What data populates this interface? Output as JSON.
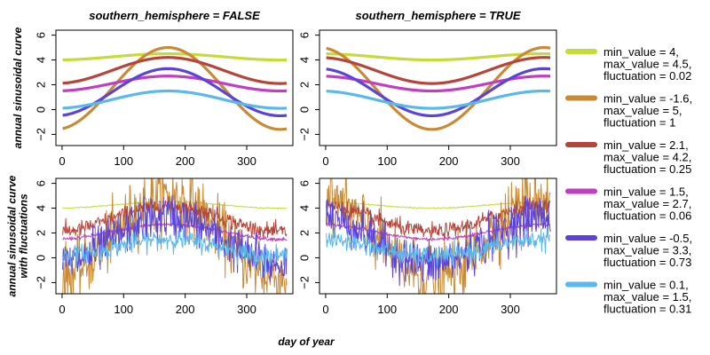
{
  "chart_data": {
    "type": "line",
    "x_label": "day of year",
    "columns": [
      {
        "title": "southern_hemisphere = FALSE",
        "southern_hemisphere": false
      },
      {
        "title": "southern_hemisphere = TRUE",
        "southern_hemisphere": true
      }
    ],
    "rows": [
      {
        "y_label_lines": [
          "annual sinusoidal curve"
        ],
        "with_fluctuations": false
      },
      {
        "y_label_lines": [
          "annual sinusoidal curve",
          "with fluctuations"
        ],
        "with_fluctuations": true
      }
    ],
    "xlim": [
      -10,
      375
    ],
    "ylim": [
      -2.9,
      6.4
    ],
    "x_ticks": [
      0,
      100,
      200,
      300
    ],
    "y_ticks": [
      -2,
      0,
      2,
      4,
      6
    ],
    "peak_day_north": 172,
    "peak_day_south": 355,
    "series": [
      {
        "name": "min_value = 4,\nmax_value = 4.5,\nfluctuation = 0.02",
        "min_value": 4,
        "max_value": 4.5,
        "fluctuation": 0.02,
        "color": "#c7da3b"
      },
      {
        "name": "min_value = -1.6,\nmax_value = 5,\nfluctuation = 1",
        "min_value": -1.6,
        "max_value": 5,
        "fluctuation": 1,
        "color": "#c88a34"
      },
      {
        "name": "min_value = 2.1,\nmax_value = 4.2,\nfluctuation = 0.25",
        "min_value": 2.1,
        "max_value": 4.2,
        "fluctuation": 0.25,
        "color": "#b5453a"
      },
      {
        "name": "min_value = 1.5,\nmax_value = 2.7,\nfluctuation = 0.06",
        "min_value": 1.5,
        "max_value": 2.7,
        "fluctuation": 0.06,
        "color": "#c03ec0"
      },
      {
        "name": "min_value = -0.5,\nmax_value = 3.3,\nfluctuation = 0.73",
        "min_value": -0.5,
        "max_value": 3.3,
        "fluctuation": 0.73,
        "color": "#5a44d8"
      },
      {
        "name": "min_value = 0.1,\nmax_value = 1.5,\nfluctuation = 0.31",
        "min_value": 0.1,
        "max_value": 1.5,
        "fluctuation": 0.31,
        "color": "#5ab8ea"
      }
    ],
    "legend_position": "right",
    "grid": false
  }
}
